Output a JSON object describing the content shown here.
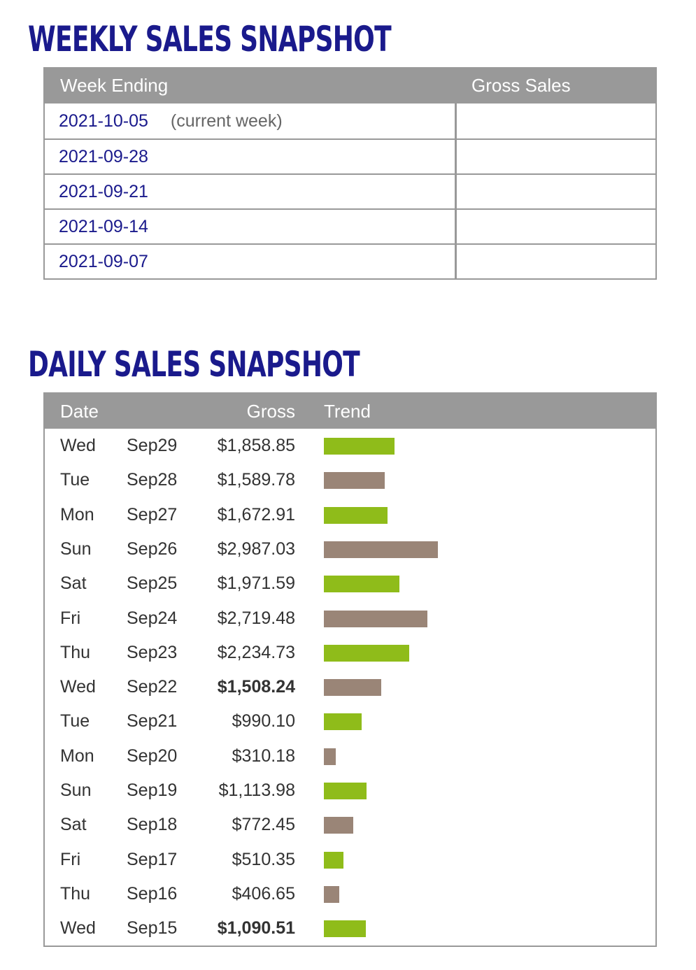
{
  "weekly": {
    "title": "WEEKLY SALES SNAPSHOT",
    "headers": {
      "week_ending": "Week Ending",
      "gross_sales": "Gross Sales"
    },
    "rows": [
      {
        "week": "2021-10-05",
        "note": "(current week)",
        "gross": ""
      },
      {
        "week": "2021-09-28",
        "note": "",
        "gross": ""
      },
      {
        "week": "2021-09-21",
        "note": "",
        "gross": ""
      },
      {
        "week": "2021-09-14",
        "note": "",
        "gross": ""
      },
      {
        "week": "2021-09-07",
        "note": "",
        "gross": ""
      }
    ]
  },
  "daily": {
    "title": "DAILY SALES SNAPSHOT",
    "headers": {
      "date": "Date",
      "gross": "Gross",
      "trend": "Trend"
    },
    "colors": {
      "green": "#8fbc1a",
      "taupe": "#9a8577"
    },
    "rows": [
      {
        "day": "Wed",
        "date": "Sep29",
        "gross": "$1,858.85",
        "value": 1858.85,
        "bold": false,
        "color": "green"
      },
      {
        "day": "Tue",
        "date": "Sep28",
        "gross": "$1,589.78",
        "value": 1589.78,
        "bold": false,
        "color": "taupe"
      },
      {
        "day": "Mon",
        "date": "Sep27",
        "gross": "$1,672.91",
        "value": 1672.91,
        "bold": false,
        "color": "green"
      },
      {
        "day": "Sun",
        "date": "Sep26",
        "gross": "$2,987.03",
        "value": 2987.03,
        "bold": false,
        "color": "taupe"
      },
      {
        "day": "Sat",
        "date": "Sep25",
        "gross": "$1,971.59",
        "value": 1971.59,
        "bold": false,
        "color": "green"
      },
      {
        "day": "Fri",
        "date": "Sep24",
        "gross": "$2,719.48",
        "value": 2719.48,
        "bold": false,
        "color": "taupe"
      },
      {
        "day": "Thu",
        "date": "Sep23",
        "gross": "$2,234.73",
        "value": 2234.73,
        "bold": false,
        "color": "green"
      },
      {
        "day": "Wed",
        "date": "Sep22",
        "gross": "$1,508.24",
        "value": 1508.24,
        "bold": true,
        "color": "taupe"
      },
      {
        "day": "Tue",
        "date": "Sep21",
        "gross": "$990.10",
        "value": 990.1,
        "bold": false,
        "color": "green"
      },
      {
        "day": "Mon",
        "date": "Sep20",
        "gross": "$310.18",
        "value": 310.18,
        "bold": false,
        "color": "taupe"
      },
      {
        "day": "Sun",
        "date": "Sep19",
        "gross": "$1,113.98",
        "value": 1113.98,
        "bold": false,
        "color": "green"
      },
      {
        "day": "Sat",
        "date": "Sep18",
        "gross": "$772.45",
        "value": 772.45,
        "bold": false,
        "color": "taupe"
      },
      {
        "day": "Fri",
        "date": "Sep17",
        "gross": "$510.35",
        "value": 510.35,
        "bold": false,
        "color": "green"
      },
      {
        "day": "Thu",
        "date": "Sep16",
        "gross": "$406.65",
        "value": 406.65,
        "bold": false,
        "color": "taupe"
      },
      {
        "day": "Wed",
        "date": "Sep15",
        "gross": "$1,090.51",
        "value": 1090.51,
        "bold": true,
        "color": "green"
      }
    ]
  }
}
